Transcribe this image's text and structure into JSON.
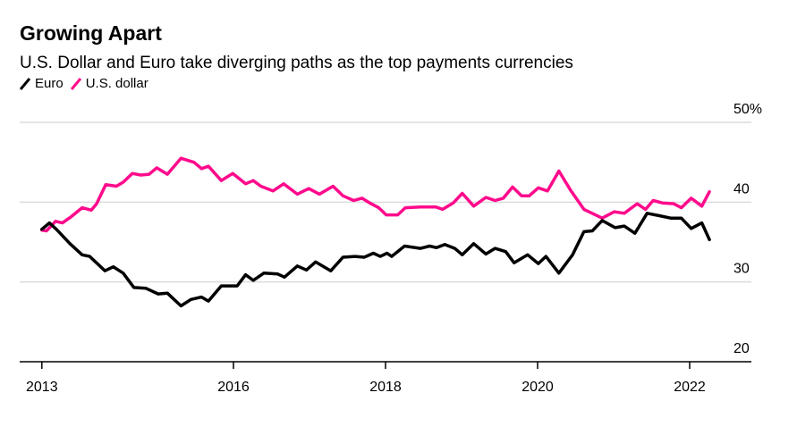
{
  "chart_data": {
    "type": "line",
    "title": "Growing Apart",
    "subtitle": "U.S. Dollar and Euro take diverging paths as the top payments currencies",
    "xlabel": "",
    "ylabel": "",
    "ylim": [
      20,
      50
    ],
    "yticks": [
      {
        "value": 50,
        "label": "50%"
      },
      {
        "value": 40,
        "label": "40"
      },
      {
        "value": 30,
        "label": "30"
      },
      {
        "value": 20,
        "label": "20"
      }
    ],
    "xticks": [
      "2013",
      "2016",
      "2018",
      "2020",
      "2022"
    ],
    "grid": true,
    "y_axis_side": "right",
    "legend_placement": "top-left",
    "series": [
      {
        "name": "Euro",
        "color": "#000000",
        "x": [
          2013.48,
          2013.58,
          2013.67,
          2013.85,
          2014.01,
          2014.11,
          2014.31,
          2014.42,
          2014.55,
          2014.69,
          2014.85,
          2015.01,
          2015.13,
          2015.31,
          2015.44,
          2015.58,
          2015.67,
          2015.84,
          2016.05,
          2016.16,
          2016.26,
          2016.4,
          2016.58,
          2016.67,
          2016.84,
          2016.96,
          2017.08,
          2017.28,
          2017.44,
          2017.6,
          2017.72,
          2017.84,
          2017.93,
          2018.02,
          2018.08,
          2018.25,
          2018.46,
          2018.58,
          2018.67,
          2018.78,
          2018.91,
          2019.01,
          2019.16,
          2019.32,
          2019.44,
          2019.58,
          2019.69,
          2019.87,
          2020.01,
          2020.11,
          2020.28,
          2020.46,
          2020.61,
          2020.72,
          2020.85,
          2021.02,
          2021.14,
          2021.28,
          2021.44,
          2021.6,
          2021.75,
          2021.89,
          2022.02,
          2022.16,
          2022.26
        ],
        "y": [
          36.6,
          37.4,
          36.6,
          34.8,
          33.4,
          33.2,
          31.4,
          31.9,
          31.1,
          29.3,
          29.2,
          28.5,
          28.6,
          27.0,
          27.8,
          28.1,
          27.6,
          29.5,
          29.5,
          30.9,
          30.2,
          31.1,
          31.0,
          30.6,
          32.0,
          31.5,
          32.5,
          31.4,
          33.1,
          33.2,
          33.1,
          33.6,
          33.2,
          33.6,
          33.2,
          34.5,
          34.2,
          34.5,
          34.3,
          34.7,
          34.2,
          33.4,
          34.8,
          33.5,
          34.2,
          33.8,
          32.4,
          33.4,
          32.3,
          33.2,
          31.1,
          33.4,
          36.3,
          36.4,
          37.7,
          36.8,
          37.0,
          36.1,
          38.6,
          38.3,
          38.0,
          38.0,
          36.7,
          37.4,
          35.3
        ]
      },
      {
        "name": "U.S. dollar",
        "color": "#ff0a8c",
        "x": [
          2013.48,
          2013.54,
          2013.66,
          2013.75,
          2013.87,
          2014.01,
          2014.13,
          2014.2,
          2014.32,
          2014.46,
          2014.55,
          2014.67,
          2014.78,
          2014.89,
          2014.99,
          2015.13,
          2015.31,
          2015.48,
          2015.58,
          2015.67,
          2015.84,
          2015.99,
          2016.16,
          2016.26,
          2016.36,
          2016.52,
          2016.66,
          2016.84,
          2016.99,
          2017.13,
          2017.31,
          2017.44,
          2017.58,
          2017.69,
          2017.81,
          2017.91,
          2018.01,
          2018.16,
          2018.26,
          2018.46,
          2018.66,
          2018.75,
          2018.89,
          2019.01,
          2019.16,
          2019.32,
          2019.44,
          2019.55,
          2019.67,
          2019.79,
          2019.89,
          2020.01,
          2020.13,
          2020.28,
          2020.44,
          2020.61,
          2020.85,
          2021.01,
          2021.14,
          2021.31,
          2021.42,
          2021.52,
          2021.64,
          2021.79,
          2021.89,
          2022.02,
          2022.16,
          2022.26
        ],
        "y": [
          36.5,
          36.4,
          37.6,
          37.4,
          38.2,
          39.3,
          39.0,
          39.8,
          42.2,
          42.0,
          42.5,
          43.6,
          43.4,
          43.5,
          44.3,
          43.5,
          45.5,
          45.0,
          44.2,
          44.5,
          42.7,
          43.6,
          42.3,
          42.7,
          42.0,
          41.4,
          42.3,
          41.0,
          41.7,
          41.0,
          42.0,
          40.8,
          40.2,
          40.5,
          39.8,
          39.3,
          38.4,
          38.4,
          39.3,
          39.4,
          39.4,
          39.1,
          39.9,
          41.1,
          39.5,
          40.6,
          40.2,
          40.5,
          41.9,
          40.8,
          40.8,
          41.8,
          41.4,
          43.9,
          41.4,
          39.1,
          38.0,
          38.8,
          38.6,
          39.8,
          39.1,
          40.2,
          39.9,
          39.8,
          39.3,
          40.5,
          39.5,
          41.3
        ]
      }
    ]
  }
}
